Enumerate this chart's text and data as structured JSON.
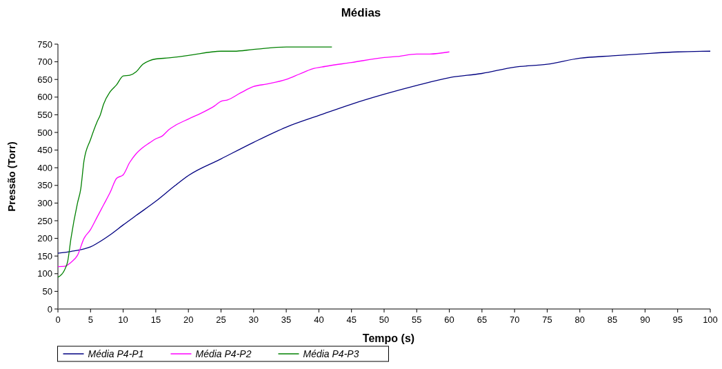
{
  "chart_data": {
    "type": "line",
    "title": "Médias",
    "xlabel": "Tempo (s)",
    "ylabel": "Pressão (Torr)",
    "xlim": [
      0,
      100
    ],
    "xticks": [
      0,
      5,
      10,
      15,
      20,
      25,
      30,
      35,
      40,
      45,
      50,
      55,
      60,
      65,
      70,
      75,
      80,
      85,
      90,
      95,
      100
    ],
    "ylim": [
      0,
      750
    ],
    "yticks": [
      0,
      50,
      100,
      150,
      200,
      250,
      300,
      350,
      400,
      450,
      500,
      550,
      600,
      650,
      700,
      750
    ],
    "grid": false,
    "legend": "bottom",
    "marker": "none",
    "line_style": "solid",
    "series": [
      {
        "name": "Média P4-P1",
        "color": "#000080",
        "x": [
          0,
          2,
          4,
          5,
          6,
          8,
          10,
          12,
          15,
          18,
          20,
          25,
          30,
          35,
          40,
          45,
          50,
          55,
          60,
          65,
          70,
          75,
          80,
          85,
          90,
          95,
          100
        ],
        "values": [
          158,
          163,
          170,
          176,
          186,
          210,
          238,
          265,
          305,
          350,
          378,
          425,
          472,
          515,
          548,
          580,
          608,
          633,
          655,
          667,
          685,
          693,
          710,
          717,
          723,
          728,
          730
        ]
      },
      {
        "name": "Média P4-P2",
        "color": "#ff00ff",
        "x": [
          0,
          1,
          2,
          3,
          4,
          5,
          6,
          7,
          8,
          9,
          10,
          11,
          12,
          13,
          14,
          15,
          16,
          17,
          18,
          20,
          22,
          24,
          25,
          26,
          28,
          30,
          32,
          35,
          37,
          39,
          41,
          45,
          50,
          52,
          55,
          57,
          60
        ],
        "values": [
          120,
          121,
          132,
          152,
          200,
          225,
          260,
          295,
          330,
          370,
          380,
          415,
          440,
          457,
          470,
          482,
          490,
          508,
          520,
          538,
          555,
          575,
          588,
          592,
          612,
          630,
          637,
          650,
          665,
          680,
          687,
          698,
          712,
          715,
          722,
          722,
          728
        ]
      },
      {
        "name": "Média P4-P3",
        "color": "#008000",
        "x": [
          0,
          1,
          1.5,
          2,
          3,
          3.5,
          4,
          5,
          6,
          6.5,
          7,
          8,
          9,
          10,
          11,
          12,
          13,
          14,
          15,
          17,
          20,
          25,
          27,
          30,
          35,
          42
        ],
        "values": [
          90,
          110,
          135,
          200,
          300,
          340,
          420,
          480,
          530,
          550,
          580,
          615,
          635,
          660,
          662,
          672,
          693,
          703,
          708,
          711,
          718,
          730,
          730,
          735,
          742,
          742
        ]
      }
    ]
  }
}
